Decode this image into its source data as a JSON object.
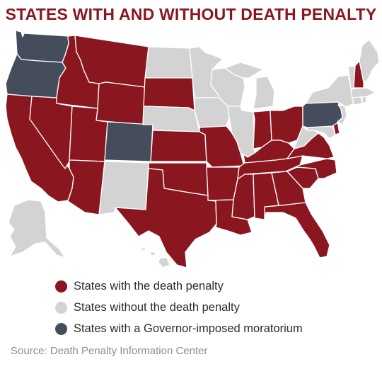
{
  "title": "STATES WITH AND WITHOUT DEATH PENALTY",
  "colors": {
    "death_penalty": "#8a1720",
    "no_death_penalty": "#d3d3d3",
    "moratorium": "#454c5c",
    "title": "#8a1720",
    "source": "#8d8d8d"
  },
  "legend": [
    {
      "label": "States with the death penalty",
      "status": "death_penalty"
    },
    {
      "label": "States without the death penalty",
      "status": "no_death_penalty"
    },
    {
      "label": "States with a Governor-imposed moratorium",
      "status": "moratorium"
    }
  ],
  "states": {
    "WA": "moratorium",
    "OR": "moratorium",
    "CA": "death_penalty",
    "ID": "death_penalty",
    "NV": "death_penalty",
    "MT": "death_penalty",
    "WY": "death_penalty",
    "UT": "death_penalty",
    "AZ": "death_penalty",
    "CO": "moratorium",
    "NM": "no_death_penalty",
    "ND": "no_death_penalty",
    "SD": "death_penalty",
    "NE": "no_death_penalty",
    "KS": "death_penalty",
    "OK": "death_penalty",
    "TX": "death_penalty",
    "MN": "no_death_penalty",
    "IA": "no_death_penalty",
    "MO": "death_penalty",
    "AR": "death_penalty",
    "LA": "death_penalty",
    "WI": "no_death_penalty",
    "IL": "no_death_penalty",
    "MI": "no_death_penalty",
    "IN": "death_penalty",
    "OH": "death_penalty",
    "KY": "death_penalty",
    "TN": "death_penalty",
    "MS": "death_penalty",
    "AL": "death_penalty",
    "GA": "death_penalty",
    "FL": "death_penalty",
    "SC": "death_penalty",
    "NC": "death_penalty",
    "VA": "death_penalty",
    "WV": "no_death_penalty",
    "MD": "no_death_penalty",
    "DE": "death_penalty",
    "PA": "moratorium",
    "NJ": "no_death_penalty",
    "NY": "no_death_penalty",
    "CT": "no_death_penalty",
    "RI": "no_death_penalty",
    "MA": "no_death_penalty",
    "VT": "no_death_penalty",
    "NH": "death_penalty",
    "ME": "no_death_penalty",
    "AK": "no_death_penalty",
    "HI": "no_death_penalty"
  },
  "source": "Source: Death Penalty Information Center"
}
